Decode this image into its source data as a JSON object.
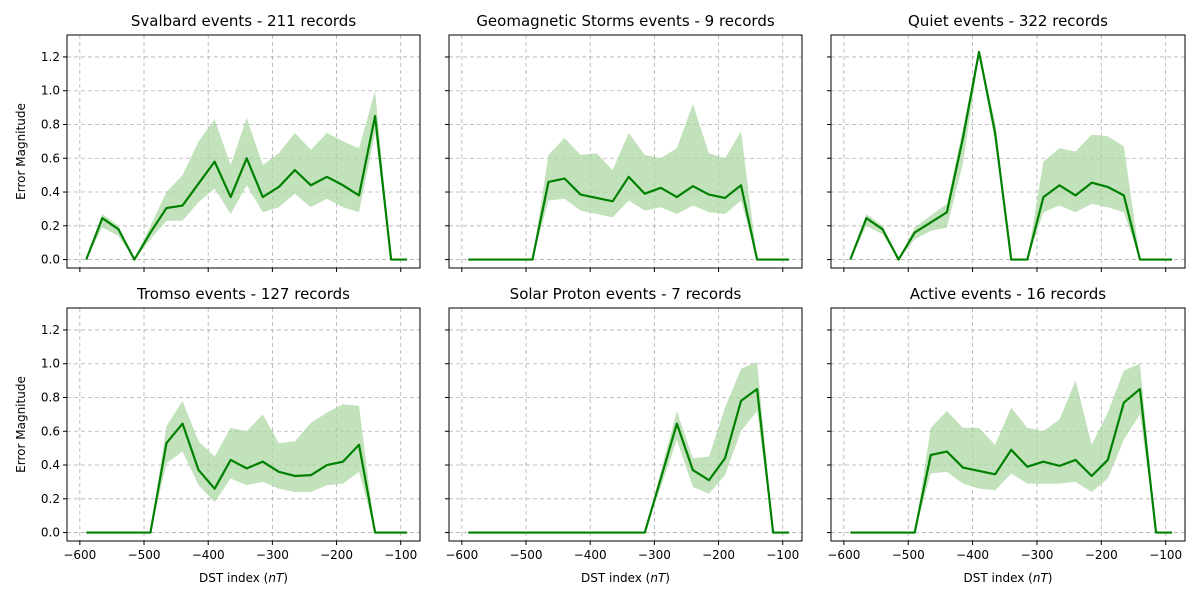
{
  "figure": {
    "xlabel_prefix": "DST index (",
    "xlabel_unit": "nT",
    "xlabel_suffix": ")",
    "ylabel": "Error Magnitude"
  },
  "style": {
    "line_color": "#008000",
    "band_color": "#a8d6a0"
  },
  "chart_data": [
    {
      "type": "line",
      "title": "Svalbard events - 211 records",
      "xlabel": "DST index (nT)",
      "ylabel": "Error Magnitude",
      "xlim": [
        -620,
        -70
      ],
      "ylim": [
        -0.05,
        1.33
      ],
      "xticks": [
        -600,
        -500,
        -400,
        -300,
        -200,
        -100
      ],
      "yticks": [
        0.0,
        0.2,
        0.4,
        0.6,
        0.8,
        1.0,
        1.2
      ],
      "grid": true,
      "x": [
        -590,
        -565,
        -540,
        -515,
        -490,
        -465,
        -440,
        -415,
        -390,
        -365,
        -340,
        -315,
        -290,
        -265,
        -240,
        -215,
        -190,
        -165,
        -140,
        -115,
        -90
      ],
      "y": [
        0.0,
        0.245,
        0.18,
        0.0,
        0.16,
        0.305,
        0.32,
        0.45,
        0.58,
        0.37,
        0.6,
        0.37,
        0.43,
        0.53,
        0.44,
        0.49,
        0.44,
        0.38,
        0.85,
        0.0,
        0.0
      ],
      "band_upper": [
        0.0,
        0.27,
        0.2,
        0.0,
        0.2,
        0.4,
        0.5,
        0.7,
        0.83,
        0.56,
        0.84,
        0.56,
        0.63,
        0.75,
        0.65,
        0.75,
        0.7,
        0.66,
        1.0,
        0.0,
        0.0
      ],
      "band_lower": [
        0.0,
        0.19,
        0.14,
        0.0,
        0.12,
        0.23,
        0.23,
        0.34,
        0.42,
        0.27,
        0.44,
        0.28,
        0.31,
        0.39,
        0.31,
        0.36,
        0.31,
        0.28,
        0.75,
        0.0,
        0.0
      ]
    },
    {
      "type": "line",
      "title": "Geomagnetic Storms events - 9 records",
      "xlim": [
        -620,
        -70
      ],
      "ylim": [
        -0.05,
        1.33
      ],
      "xticks": [
        -600,
        -500,
        -400,
        -300,
        -200,
        -100
      ],
      "yticks": [
        0.0,
        0.2,
        0.4,
        0.6,
        0.8,
        1.0,
        1.2
      ],
      "grid": true,
      "x": [
        -590,
        -565,
        -540,
        -515,
        -490,
        -465,
        -440,
        -415,
        -390,
        -365,
        -340,
        -315,
        -290,
        -265,
        -240,
        -215,
        -190,
        -165,
        -140,
        -115,
        -90
      ],
      "y": [
        0.0,
        0.0,
        0.0,
        0.0,
        0.0,
        0.46,
        0.48,
        0.385,
        0.365,
        0.345,
        0.49,
        0.39,
        0.425,
        0.37,
        0.435,
        0.385,
        0.365,
        0.44,
        0.0,
        0.0,
        0.0
      ],
      "band_upper": [
        0.0,
        0.0,
        0.0,
        0.0,
        0.0,
        0.62,
        0.72,
        0.62,
        0.63,
        0.53,
        0.75,
        0.62,
        0.6,
        0.66,
        0.92,
        0.63,
        0.6,
        0.76,
        0.0,
        0.0,
        0.0
      ],
      "band_lower": [
        0.0,
        0.0,
        0.0,
        0.0,
        0.0,
        0.35,
        0.36,
        0.29,
        0.27,
        0.25,
        0.35,
        0.29,
        0.31,
        0.27,
        0.32,
        0.28,
        0.27,
        0.35,
        0.0,
        0.0,
        0.0
      ]
    },
    {
      "type": "line",
      "title": "Quiet events - 322 records",
      "xlim": [
        -620,
        -70
      ],
      "ylim": [
        -0.05,
        1.33
      ],
      "xticks": [
        -600,
        -500,
        -400,
        -300,
        -200,
        -100
      ],
      "yticks": [
        0.0,
        0.2,
        0.4,
        0.6,
        0.8,
        1.0,
        1.2
      ],
      "grid": true,
      "x": [
        -590,
        -565,
        -540,
        -515,
        -490,
        -465,
        -440,
        -415,
        -390,
        -365,
        -340,
        -315,
        -290,
        -265,
        -240,
        -215,
        -190,
        -165,
        -140,
        -115,
        -90
      ],
      "y": [
        0.0,
        0.245,
        0.18,
        0.0,
        0.16,
        0.22,
        0.28,
        0.72,
        1.23,
        0.75,
        0.0,
        0.0,
        0.37,
        0.44,
        0.38,
        0.455,
        0.43,
        0.38,
        0.0,
        0.0,
        0.0
      ],
      "band_upper": [
        0.0,
        0.27,
        0.2,
        0.0,
        0.19,
        0.26,
        0.33,
        0.78,
        1.24,
        0.81,
        0.0,
        0.0,
        0.58,
        0.66,
        0.64,
        0.74,
        0.73,
        0.67,
        0.0,
        0.0,
        0.0
      ],
      "band_lower": [
        0.0,
        0.2,
        0.15,
        0.0,
        0.12,
        0.17,
        0.19,
        0.57,
        1.21,
        0.69,
        0.0,
        0.0,
        0.28,
        0.32,
        0.28,
        0.33,
        0.31,
        0.28,
        0.0,
        0.0,
        0.0
      ]
    },
    {
      "type": "line",
      "title": "Tromso events - 127 records",
      "xlim": [
        -620,
        -70
      ],
      "ylim": [
        -0.05,
        1.33
      ],
      "xticks": [
        -600,
        -500,
        -400,
        -300,
        -200,
        -100
      ],
      "yticks": [
        0.0,
        0.2,
        0.4,
        0.6,
        0.8,
        1.0,
        1.2
      ],
      "grid": true,
      "x": [
        -590,
        -565,
        -540,
        -515,
        -490,
        -465,
        -440,
        -415,
        -390,
        -365,
        -340,
        -315,
        -290,
        -265,
        -240,
        -215,
        -190,
        -165,
        -140,
        -115,
        -90
      ],
      "y": [
        0.0,
        0.0,
        0.0,
        0.0,
        0.0,
        0.53,
        0.645,
        0.37,
        0.26,
        0.43,
        0.38,
        0.42,
        0.36,
        0.335,
        0.34,
        0.4,
        0.42,
        0.52,
        0.0,
        0.0,
        0.0
      ],
      "band_upper": [
        0.0,
        0.0,
        0.0,
        0.0,
        0.0,
        0.63,
        0.78,
        0.54,
        0.45,
        0.62,
        0.6,
        0.7,
        0.53,
        0.54,
        0.65,
        0.71,
        0.76,
        0.75,
        0.0,
        0.0,
        0.0
      ],
      "band_lower": [
        0.0,
        0.0,
        0.0,
        0.0,
        0.0,
        0.41,
        0.48,
        0.28,
        0.18,
        0.32,
        0.28,
        0.3,
        0.26,
        0.24,
        0.24,
        0.28,
        0.29,
        0.36,
        0.0,
        0.0,
        0.0
      ]
    },
    {
      "type": "line",
      "title": "Solar Proton events - 7 records",
      "xlim": [
        -620,
        -70
      ],
      "ylim": [
        -0.05,
        1.33
      ],
      "xticks": [
        -600,
        -500,
        -400,
        -300,
        -200,
        -100
      ],
      "yticks": [
        0.0,
        0.2,
        0.4,
        0.6,
        0.8,
        1.0,
        1.2
      ],
      "grid": true,
      "x": [
        -590,
        -565,
        -540,
        -515,
        -490,
        -465,
        -440,
        -415,
        -390,
        -365,
        -340,
        -315,
        -290,
        -265,
        -240,
        -215,
        -190,
        -165,
        -140,
        -115,
        -90
      ],
      "y": [
        0.0,
        0.0,
        0.0,
        0.0,
        0.0,
        0.0,
        0.0,
        0.0,
        0.0,
        0.0,
        0.0,
        0.0,
        0.32,
        0.645,
        0.37,
        0.31,
        0.44,
        0.78,
        0.85,
        0.0,
        0.0
      ],
      "band_upper": [
        0.0,
        0.0,
        0.0,
        0.0,
        0.0,
        0.0,
        0.0,
        0.0,
        0.0,
        0.0,
        0.0,
        0.0,
        0.36,
        0.72,
        0.44,
        0.45,
        0.74,
        0.97,
        1.01,
        0.0,
        0.0
      ],
      "band_lower": [
        0.0,
        0.0,
        0.0,
        0.0,
        0.0,
        0.0,
        0.0,
        0.0,
        0.0,
        0.0,
        0.0,
        0.0,
        0.27,
        0.55,
        0.27,
        0.23,
        0.34,
        0.6,
        0.72,
        0.0,
        0.0
      ]
    },
    {
      "type": "line",
      "title": "Active events - 16 records",
      "xlim": [
        -620,
        -70
      ],
      "ylim": [
        -0.05,
        1.33
      ],
      "xticks": [
        -600,
        -500,
        -400,
        -300,
        -200,
        -100
      ],
      "yticks": [
        0.0,
        0.2,
        0.4,
        0.6,
        0.8,
        1.0,
        1.2
      ],
      "grid": true,
      "x": [
        -590,
        -565,
        -540,
        -515,
        -490,
        -465,
        -440,
        -415,
        -390,
        -365,
        -340,
        -315,
        -290,
        -265,
        -240,
        -215,
        -190,
        -165,
        -140,
        -115,
        -90
      ],
      "y": [
        0.0,
        0.0,
        0.0,
        0.0,
        0.0,
        0.46,
        0.48,
        0.385,
        0.365,
        0.345,
        0.49,
        0.39,
        0.42,
        0.395,
        0.43,
        0.335,
        0.43,
        0.77,
        0.85,
        0.0,
        0.0
      ],
      "band_upper": [
        0.0,
        0.0,
        0.0,
        0.0,
        0.0,
        0.62,
        0.72,
        0.62,
        0.62,
        0.52,
        0.74,
        0.62,
        0.6,
        0.67,
        0.9,
        0.52,
        0.71,
        0.96,
        1.0,
        0.0,
        0.0
      ],
      "band_lower": [
        0.0,
        0.0,
        0.0,
        0.0,
        0.0,
        0.35,
        0.36,
        0.29,
        0.26,
        0.25,
        0.35,
        0.29,
        0.29,
        0.29,
        0.3,
        0.24,
        0.32,
        0.55,
        0.7,
        0.0,
        0.0
      ]
    }
  ]
}
